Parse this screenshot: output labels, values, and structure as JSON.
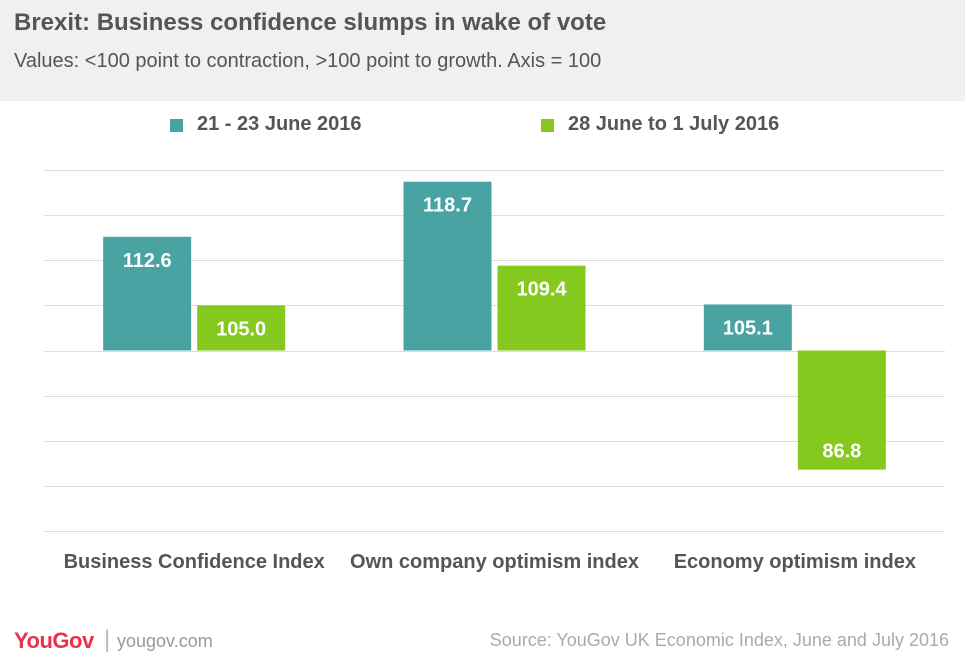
{
  "title": "Brexit: Business confidence slumps in wake of vote",
  "subtitle": "Values: <100 point to contraction, >100 point to growth. Axis = 100",
  "footer": {
    "logo": "YouGov",
    "separator": "|",
    "url": "yougov.com",
    "source": "Source: YouGov UK Economic Index, June and July 2016"
  },
  "colors": {
    "series1": "#4aa3a3",
    "series2": "#86c91e",
    "grid": "#dddddd",
    "header_bg": "#f0f0f0",
    "brand": "#e8314a"
  },
  "chart_data": {
    "type": "bar",
    "baseline": 100,
    "categories": [
      "Business Confidence Index",
      "Own company optimism index",
      "Economy optimism index"
    ],
    "series": [
      {
        "name": "21 - 23 June 2016",
        "values": [
          112.6,
          118.7,
          105.1
        ],
        "labels": [
          "112.6",
          "118.7",
          "105.1"
        ]
      },
      {
        "name": "28 June to 1 July 2016",
        "values": [
          105.0,
          109.4,
          86.8
        ],
        "labels": [
          "105.0",
          "109.4",
          "86.8"
        ]
      }
    ],
    "ylim": [
      80,
      120
    ],
    "grid": true,
    "legend_position": "top"
  }
}
